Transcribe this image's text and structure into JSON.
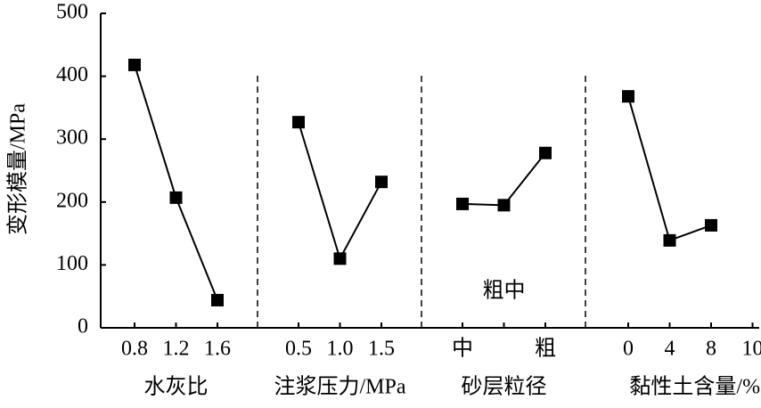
{
  "chart_data": {
    "type": "line",
    "ylabel": "变形模量/MPa",
    "ylim": [
      0,
      500
    ],
    "yticks": [
      0,
      100,
      200,
      300,
      400,
      500
    ],
    "color": "#000000",
    "panels": [
      {
        "xlabel": "水灰比",
        "categories": [
          "0.8",
          "1.2",
          "1.6"
        ],
        "values": [
          418,
          207,
          44
        ]
      },
      {
        "xlabel": "注浆压力/MPa",
        "categories": [
          "0.5",
          "1.0",
          "1.5"
        ],
        "values": [
          327,
          110,
          232
        ]
      },
      {
        "xlabel": "砂层粒径",
        "categories": [
          "中",
          null,
          "粗"
        ],
        "values": [
          197,
          195,
          278
        ],
        "annotation": "粗中"
      },
      {
        "xlabel": "黏性土含量/%",
        "categories": [
          "0",
          "4",
          "8",
          "10"
        ],
        "values": [
          368,
          139,
          163,
          null
        ]
      }
    ]
  }
}
